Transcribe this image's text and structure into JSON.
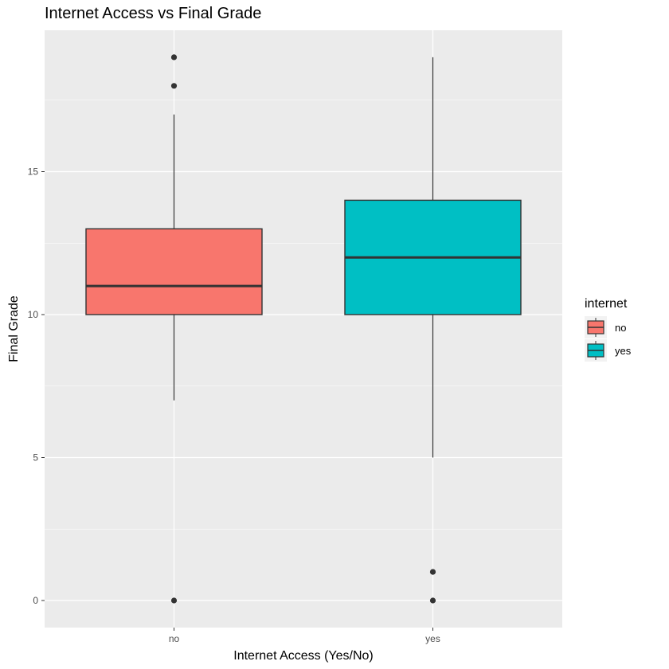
{
  "chart_data": {
    "type": "boxplot",
    "title": "Internet Access vs Final Grade",
    "xlabel": "Internet Access (Yes/No)",
    "ylabel": "Final Grade",
    "categories": [
      "no",
      "yes"
    ],
    "ylim": [
      -1,
      20
    ],
    "yticks": [
      0,
      5,
      10,
      15
    ],
    "grid": true,
    "legend": {
      "title": "internet",
      "placement": "right",
      "entries": [
        "no",
        "yes"
      ]
    },
    "series": [
      {
        "category": "no",
        "color": "#F8766D",
        "q1": 10,
        "median": 11,
        "q3": 13,
        "whisker_low": 7,
        "whisker_high": 17,
        "outliers": [
          0,
          18,
          19
        ]
      },
      {
        "category": "yes",
        "color": "#00BFC4",
        "q1": 10,
        "median": 12,
        "q3": 14,
        "whisker_low": 5,
        "whisker_high": 19,
        "outliers": [
          0,
          1
        ]
      }
    ],
    "colors": {
      "panel_background": "#EBEBEB",
      "grid": "#FFFFFF",
      "box_outline": "#333333",
      "point": "#333333"
    }
  }
}
